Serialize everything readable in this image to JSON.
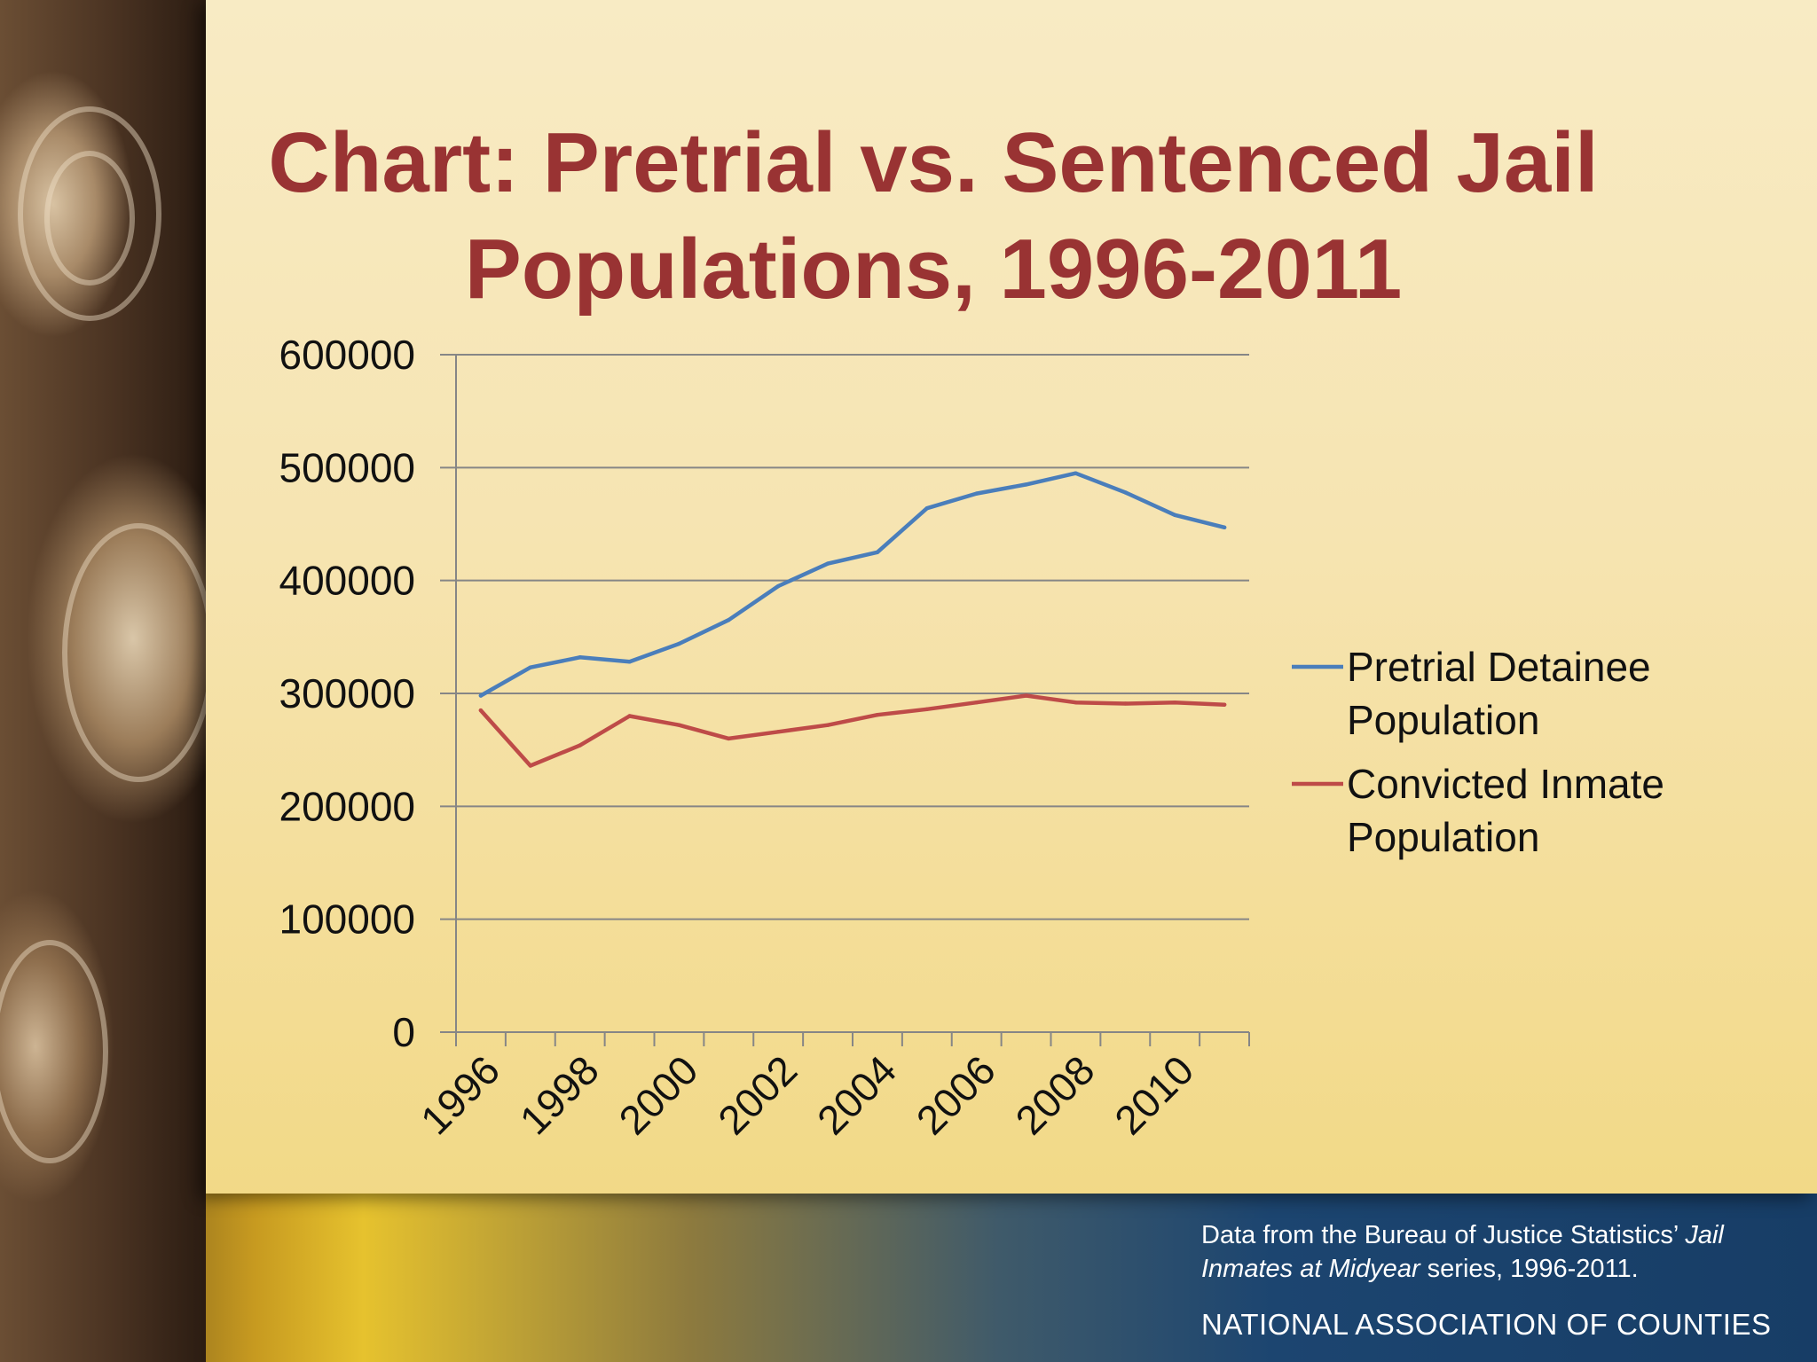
{
  "slide": {
    "title_line1": "Chart: Pretrial vs. Sentenced Jail",
    "title_line2": "Populations, 1996-2011",
    "source_part1": "Data from the Bureau of Justice Statistics’ ",
    "source_italic": "Jail Inmates at Midyear",
    "source_part2": " series, 1996-2011.",
    "organization": "NATIONAL ASSOCIATION OF COUNTIES"
  },
  "chart_data": {
    "type": "line",
    "title": "Chart: Pretrial vs. Sentenced Jail Populations, 1996-2011",
    "x": [
      1996,
      1997,
      1998,
      1999,
      2000,
      2001,
      2002,
      2003,
      2004,
      2005,
      2006,
      2007,
      2008,
      2009,
      2010,
      2011
    ],
    "x_tick_labels": [
      "1996",
      "1998",
      "2000",
      "2002",
      "2004",
      "2006",
      "2008",
      "2010"
    ],
    "y_tick_labels": [
      "0",
      "100000",
      "200000",
      "300000",
      "400000",
      "500000",
      "600000"
    ],
    "ylim": [
      0,
      600000
    ],
    "series": [
      {
        "name": "Pretrial Detainee Population",
        "color": "#4a7ebb",
        "values": [
          298000,
          323000,
          332000,
          328000,
          344000,
          365000,
          395000,
          415000,
          425000,
          464000,
          477000,
          485000,
          495000,
          478000,
          458000,
          447000
        ]
      },
      {
        "name": "Convicted Inmate Population",
        "color": "#be4b48",
        "values": [
          285000,
          236000,
          254000,
          280000,
          272000,
          260000,
          266000,
          272000,
          281000,
          286000,
          292000,
          298000,
          292000,
          291000,
          292000,
          290000
        ]
      }
    ],
    "legend_lines": [
      [
        "Pretrial Detainee",
        "Population"
      ],
      [
        "Convicted Inmate",
        "Population"
      ]
    ],
    "legend_position": "right",
    "grid": true,
    "grid_color": "#868686",
    "xlabel": "",
    "ylabel": ""
  }
}
